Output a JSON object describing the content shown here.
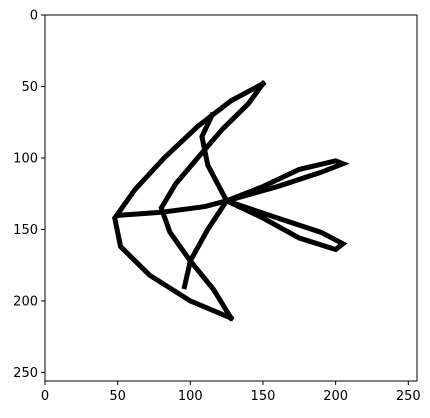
{
  "chart_data": {
    "type": "heatmap",
    "title": "",
    "xlabel": "",
    "ylabel": "",
    "xlim": [
      0,
      256
    ],
    "ylim": [
      256,
      0
    ],
    "x_ticks": [
      0,
      50,
      100,
      150,
      200,
      250
    ],
    "y_ticks": [
      0,
      50,
      100,
      150,
      200,
      250
    ],
    "grid": false,
    "colormap": "binary",
    "strokes": [
      {
        "name": "outer-left-curve",
        "points": [
          [
            150,
            48
          ],
          [
            128,
            60
          ],
          [
            105,
            78
          ],
          [
            82,
            100
          ],
          [
            62,
            122
          ],
          [
            48,
            142
          ],
          [
            52,
            162
          ],
          [
            72,
            182
          ],
          [
            100,
            200
          ],
          [
            128,
            212
          ]
        ]
      },
      {
        "name": "inner-left-curve",
        "points": [
          [
            150,
            48
          ],
          [
            140,
            62
          ],
          [
            122,
            80
          ],
          [
            105,
            100
          ],
          [
            90,
            118
          ],
          [
            80,
            135
          ],
          [
            86,
            152
          ],
          [
            100,
            172
          ],
          [
            116,
            192
          ],
          [
            128,
            212
          ]
        ]
      },
      {
        "name": "horizontal-stroke",
        "points": [
          [
            52,
            140
          ],
          [
            80,
            138
          ],
          [
            110,
            134
          ],
          [
            125,
            130
          ]
        ]
      },
      {
        "name": "upper-loop",
        "points": [
          [
            125,
            130
          ],
          [
            150,
            120
          ],
          [
            175,
            108
          ],
          [
            200,
            102
          ],
          [
            205,
            104
          ],
          [
            190,
            110
          ],
          [
            160,
            120
          ],
          [
            125,
            130
          ]
        ]
      },
      {
        "name": "lower-loop",
        "points": [
          [
            125,
            130
          ],
          [
            150,
            142
          ],
          [
            175,
            156
          ],
          [
            200,
            164
          ],
          [
            205,
            160
          ],
          [
            190,
            152
          ],
          [
            160,
            142
          ],
          [
            125,
            130
          ]
        ]
      },
      {
        "name": "upper-right-arm",
        "points": [
          [
            125,
            130
          ],
          [
            112,
            105
          ],
          [
            108,
            85
          ],
          [
            115,
            70
          ]
        ]
      },
      {
        "name": "lower-left-arm",
        "points": [
          [
            125,
            130
          ],
          [
            112,
            150
          ],
          [
            100,
            172
          ],
          [
            96,
            190
          ]
        ]
      }
    ]
  }
}
